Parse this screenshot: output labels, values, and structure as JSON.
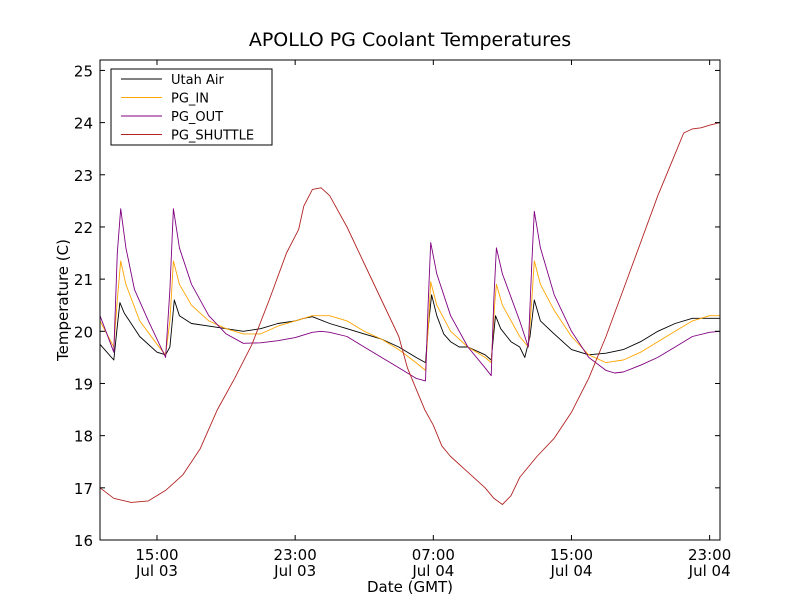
{
  "chart_data": {
    "type": "line",
    "title": "APOLLO PG Coolant Temperatures",
    "xlabel": "Date (GMT)",
    "ylabel": "Temperature (C)",
    "xlim": [
      11.7,
      47.6
    ],
    "ylim": [
      16,
      25.2
    ],
    "grid": false,
    "legend_position": "top-left",
    "yticks": [
      16,
      17,
      18,
      19,
      20,
      21,
      22,
      23,
      24,
      25
    ],
    "xticks": [
      {
        "value": 15,
        "line1": "15:00",
        "line2": "Jul 03"
      },
      {
        "value": 23,
        "line1": "23:00",
        "line2": "Jul 03"
      },
      {
        "value": 31,
        "line1": "07:00",
        "line2": "Jul 04"
      },
      {
        "value": 39,
        "line1": "15:00",
        "line2": "Jul 04"
      },
      {
        "value": 47,
        "line1": "23:00",
        "line2": "Jul 04"
      }
    ],
    "series": [
      {
        "name": "Utah Air",
        "color": "#000000",
        "points": [
          [
            11.7,
            19.75
          ],
          [
            12.5,
            19.45
          ],
          [
            12.7,
            20.1
          ],
          [
            12.85,
            20.55
          ],
          [
            13.1,
            20.35
          ],
          [
            14.0,
            19.9
          ],
          [
            15.0,
            19.6
          ],
          [
            15.5,
            19.55
          ],
          [
            15.75,
            19.7
          ],
          [
            16.0,
            20.6
          ],
          [
            16.3,
            20.3
          ],
          [
            17,
            20.15
          ],
          [
            18,
            20.1
          ],
          [
            19,
            20.05
          ],
          [
            20,
            20.0
          ],
          [
            21,
            20.05
          ],
          [
            22,
            20.15
          ],
          [
            23,
            20.2
          ],
          [
            23.5,
            20.25
          ],
          [
            24,
            20.28
          ],
          [
            25,
            20.15
          ],
          [
            26,
            20.05
          ],
          [
            27,
            19.95
          ],
          [
            28,
            19.85
          ],
          [
            29,
            19.7
          ],
          [
            30,
            19.5
          ],
          [
            30.55,
            19.4
          ],
          [
            30.7,
            20.05
          ],
          [
            30.9,
            20.7
          ],
          [
            31.2,
            20.3
          ],
          [
            31.6,
            19.95
          ],
          [
            32,
            19.8
          ],
          [
            32.5,
            19.7
          ],
          [
            33,
            19.7
          ],
          [
            34,
            19.55
          ],
          [
            34.35,
            19.45
          ],
          [
            34.6,
            20.3
          ],
          [
            34.9,
            20.05
          ],
          [
            35.5,
            19.8
          ],
          [
            36,
            19.7
          ],
          [
            36.3,
            19.5
          ],
          [
            36.6,
            19.9
          ],
          [
            36.85,
            20.6
          ],
          [
            37.2,
            20.2
          ],
          [
            38,
            19.95
          ],
          [
            39,
            19.65
          ],
          [
            40,
            19.55
          ],
          [
            41,
            19.58
          ],
          [
            42,
            19.65
          ],
          [
            43,
            19.8
          ],
          [
            44,
            20.0
          ],
          [
            45,
            20.15
          ],
          [
            46,
            20.25
          ],
          [
            47,
            20.25
          ],
          [
            47.6,
            20.25
          ]
        ]
      },
      {
        "name": "PG_IN",
        "color": "#ffa500",
        "points": [
          [
            11.7,
            20.2
          ],
          [
            12.5,
            19.7
          ],
          [
            12.7,
            20.6
          ],
          [
            12.9,
            21.35
          ],
          [
            13.2,
            20.9
          ],
          [
            14,
            20.2
          ],
          [
            15,
            19.75
          ],
          [
            15.5,
            19.55
          ],
          [
            15.75,
            20.2
          ],
          [
            15.95,
            21.35
          ],
          [
            16.3,
            20.9
          ],
          [
            17,
            20.5
          ],
          [
            18,
            20.2
          ],
          [
            19,
            20.05
          ],
          [
            20,
            19.95
          ],
          [
            21,
            19.95
          ],
          [
            22,
            20.1
          ],
          [
            23,
            20.2
          ],
          [
            24,
            20.3
          ],
          [
            25,
            20.3
          ],
          [
            26,
            20.2
          ],
          [
            27,
            20.0
          ],
          [
            28,
            19.85
          ],
          [
            29,
            19.65
          ],
          [
            30,
            19.4
          ],
          [
            30.55,
            19.25
          ],
          [
            30.75,
            20.3
          ],
          [
            30.85,
            20.95
          ],
          [
            31.2,
            20.5
          ],
          [
            32,
            20.0
          ],
          [
            33,
            19.7
          ],
          [
            34,
            19.5
          ],
          [
            34.35,
            19.4
          ],
          [
            34.55,
            20.5
          ],
          [
            34.65,
            20.9
          ],
          [
            35,
            20.5
          ],
          [
            36,
            19.9
          ],
          [
            36.5,
            19.7
          ],
          [
            36.7,
            20.6
          ],
          [
            36.85,
            21.35
          ],
          [
            37.2,
            20.9
          ],
          [
            38,
            20.4
          ],
          [
            39,
            19.9
          ],
          [
            40,
            19.55
          ],
          [
            41,
            19.4
          ],
          [
            42,
            19.45
          ],
          [
            43,
            19.6
          ],
          [
            44,
            19.8
          ],
          [
            45,
            20.0
          ],
          [
            46,
            20.2
          ],
          [
            47,
            20.3
          ],
          [
            47.6,
            20.3
          ]
        ]
      },
      {
        "name": "PG_OUT",
        "color": "#800080",
        "points": [
          [
            11.7,
            20.3
          ],
          [
            12.5,
            19.6
          ],
          [
            12.7,
            21.5
          ],
          [
            12.9,
            22.35
          ],
          [
            13.2,
            21.6
          ],
          [
            13.7,
            20.8
          ],
          [
            14.5,
            20.2
          ],
          [
            15.5,
            19.5
          ],
          [
            15.75,
            20.8
          ],
          [
            15.95,
            22.35
          ],
          [
            16.3,
            21.6
          ],
          [
            17,
            20.9
          ],
          [
            18,
            20.3
          ],
          [
            19,
            19.95
          ],
          [
            20,
            19.77
          ],
          [
            21,
            19.78
          ],
          [
            22,
            19.82
          ],
          [
            23,
            19.88
          ],
          [
            24,
            19.98
          ],
          [
            24.5,
            20.0
          ],
          [
            25,
            19.98
          ],
          [
            26,
            19.9
          ],
          [
            27,
            19.7
          ],
          [
            28,
            19.5
          ],
          [
            29,
            19.3
          ],
          [
            30,
            19.1
          ],
          [
            30.55,
            19.05
          ],
          [
            30.7,
            20.5
          ],
          [
            30.85,
            21.7
          ],
          [
            31.2,
            21.1
          ],
          [
            32,
            20.3
          ],
          [
            33,
            19.7
          ],
          [
            34,
            19.3
          ],
          [
            34.35,
            19.15
          ],
          [
            34.5,
            20.6
          ],
          [
            34.65,
            21.6
          ],
          [
            35,
            21.1
          ],
          [
            36,
            20.2
          ],
          [
            36.5,
            19.7
          ],
          [
            36.7,
            21.3
          ],
          [
            36.85,
            22.3
          ],
          [
            37.2,
            21.6
          ],
          [
            38,
            20.7
          ],
          [
            39,
            20.0
          ],
          [
            40,
            19.5
          ],
          [
            41,
            19.25
          ],
          [
            41.5,
            19.2
          ],
          [
            42,
            19.22
          ],
          [
            43,
            19.35
          ],
          [
            44,
            19.5
          ],
          [
            45,
            19.7
          ],
          [
            46,
            19.9
          ],
          [
            47,
            19.98
          ],
          [
            47.6,
            20.0
          ]
        ]
      },
      {
        "name": "PG_SHUTTLE",
        "color": "#b22222",
        "points": [
          [
            11.7,
            17.0
          ],
          [
            12.5,
            16.8
          ],
          [
            13.5,
            16.72
          ],
          [
            14.5,
            16.75
          ],
          [
            15.5,
            16.95
          ],
          [
            16.5,
            17.25
          ],
          [
            17.5,
            17.75
          ],
          [
            18.5,
            18.5
          ],
          [
            19.5,
            19.1
          ],
          [
            20.5,
            19.75
          ],
          [
            21.5,
            20.6
          ],
          [
            22.5,
            21.5
          ],
          [
            23.2,
            21.95
          ],
          [
            23.5,
            22.4
          ],
          [
            24,
            22.72
          ],
          [
            24.5,
            22.75
          ],
          [
            25,
            22.6
          ],
          [
            26,
            22.0
          ],
          [
            27,
            21.3
          ],
          [
            28,
            20.6
          ],
          [
            29,
            19.9
          ],
          [
            29.5,
            19.3
          ],
          [
            30,
            18.9
          ],
          [
            30.5,
            18.5
          ],
          [
            31,
            18.2
          ],
          [
            31.5,
            17.8
          ],
          [
            32,
            17.6
          ],
          [
            33,
            17.3
          ],
          [
            34,
            17.0
          ],
          [
            34.5,
            16.8
          ],
          [
            35,
            16.68
          ],
          [
            35.5,
            16.85
          ],
          [
            36,
            17.2
          ],
          [
            36.5,
            17.4
          ],
          [
            37,
            17.6
          ],
          [
            38,
            17.95
          ],
          [
            39,
            18.45
          ],
          [
            40,
            19.1
          ],
          [
            41,
            19.9
          ],
          [
            42,
            20.8
          ],
          [
            43,
            21.7
          ],
          [
            44,
            22.6
          ],
          [
            45,
            23.4
          ],
          [
            45.5,
            23.8
          ],
          [
            46,
            23.88
          ],
          [
            46.5,
            23.9
          ],
          [
            47,
            23.95
          ],
          [
            47.6,
            24.0
          ]
        ]
      }
    ]
  }
}
